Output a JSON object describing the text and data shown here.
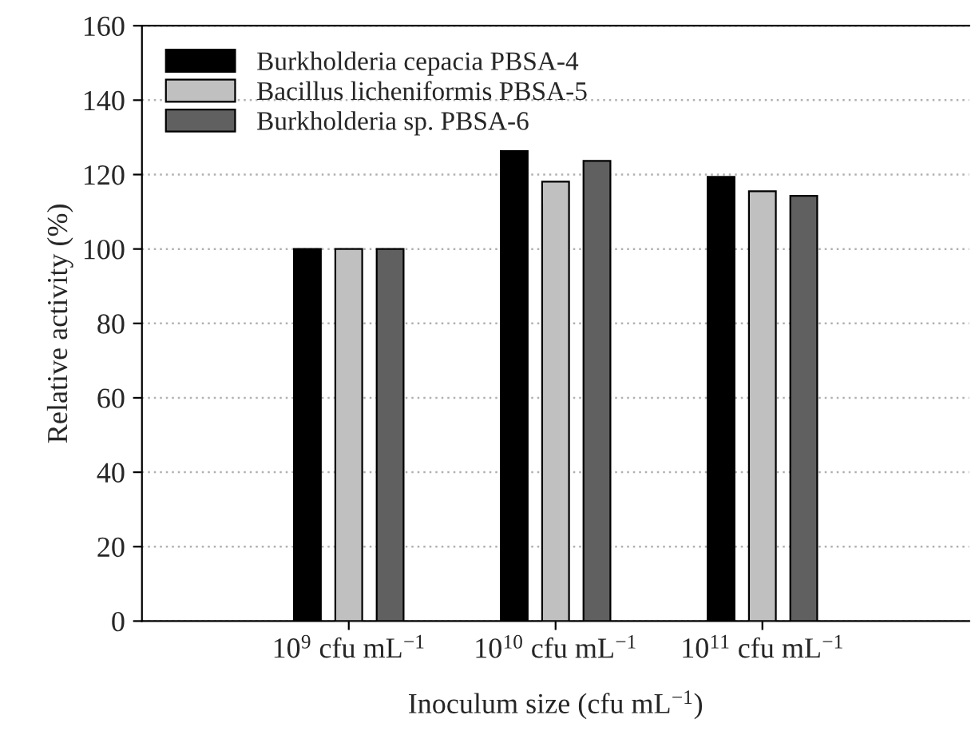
{
  "chart_data": {
    "type": "bar",
    "xlabel": "Inoculum size (cfu mL$^{−1}$)",
    "ylabel": "Relative activity (%)",
    "categories": [
      "10$^{9}$ cfu mL$^{−1}$",
      "10$^{10}$ cfu mL$^{−1}$",
      "10$^{11}$ cfu mL$^{−1}$"
    ],
    "series": [
      {
        "name": "Burkholderia cepacia PBSA-4",
        "color": "#000000",
        "values": [
          100,
          126.3,
          119.4
        ]
      },
      {
        "name": "Bacillus licheniformis PBSA-5",
        "color": "#c0c0c0",
        "values": [
          100,
          118.1,
          115.5
        ]
      },
      {
        "name": "Burkholderia sp. PBSA-6",
        "color": "#606060",
        "values": [
          100,
          123.7,
          114.3
        ]
      }
    ],
    "ylim": [
      0,
      160
    ],
    "yticks": [
      0,
      20,
      40,
      60,
      80,
      100,
      120,
      140,
      160
    ],
    "grid": "y",
    "legend": "top left"
  }
}
